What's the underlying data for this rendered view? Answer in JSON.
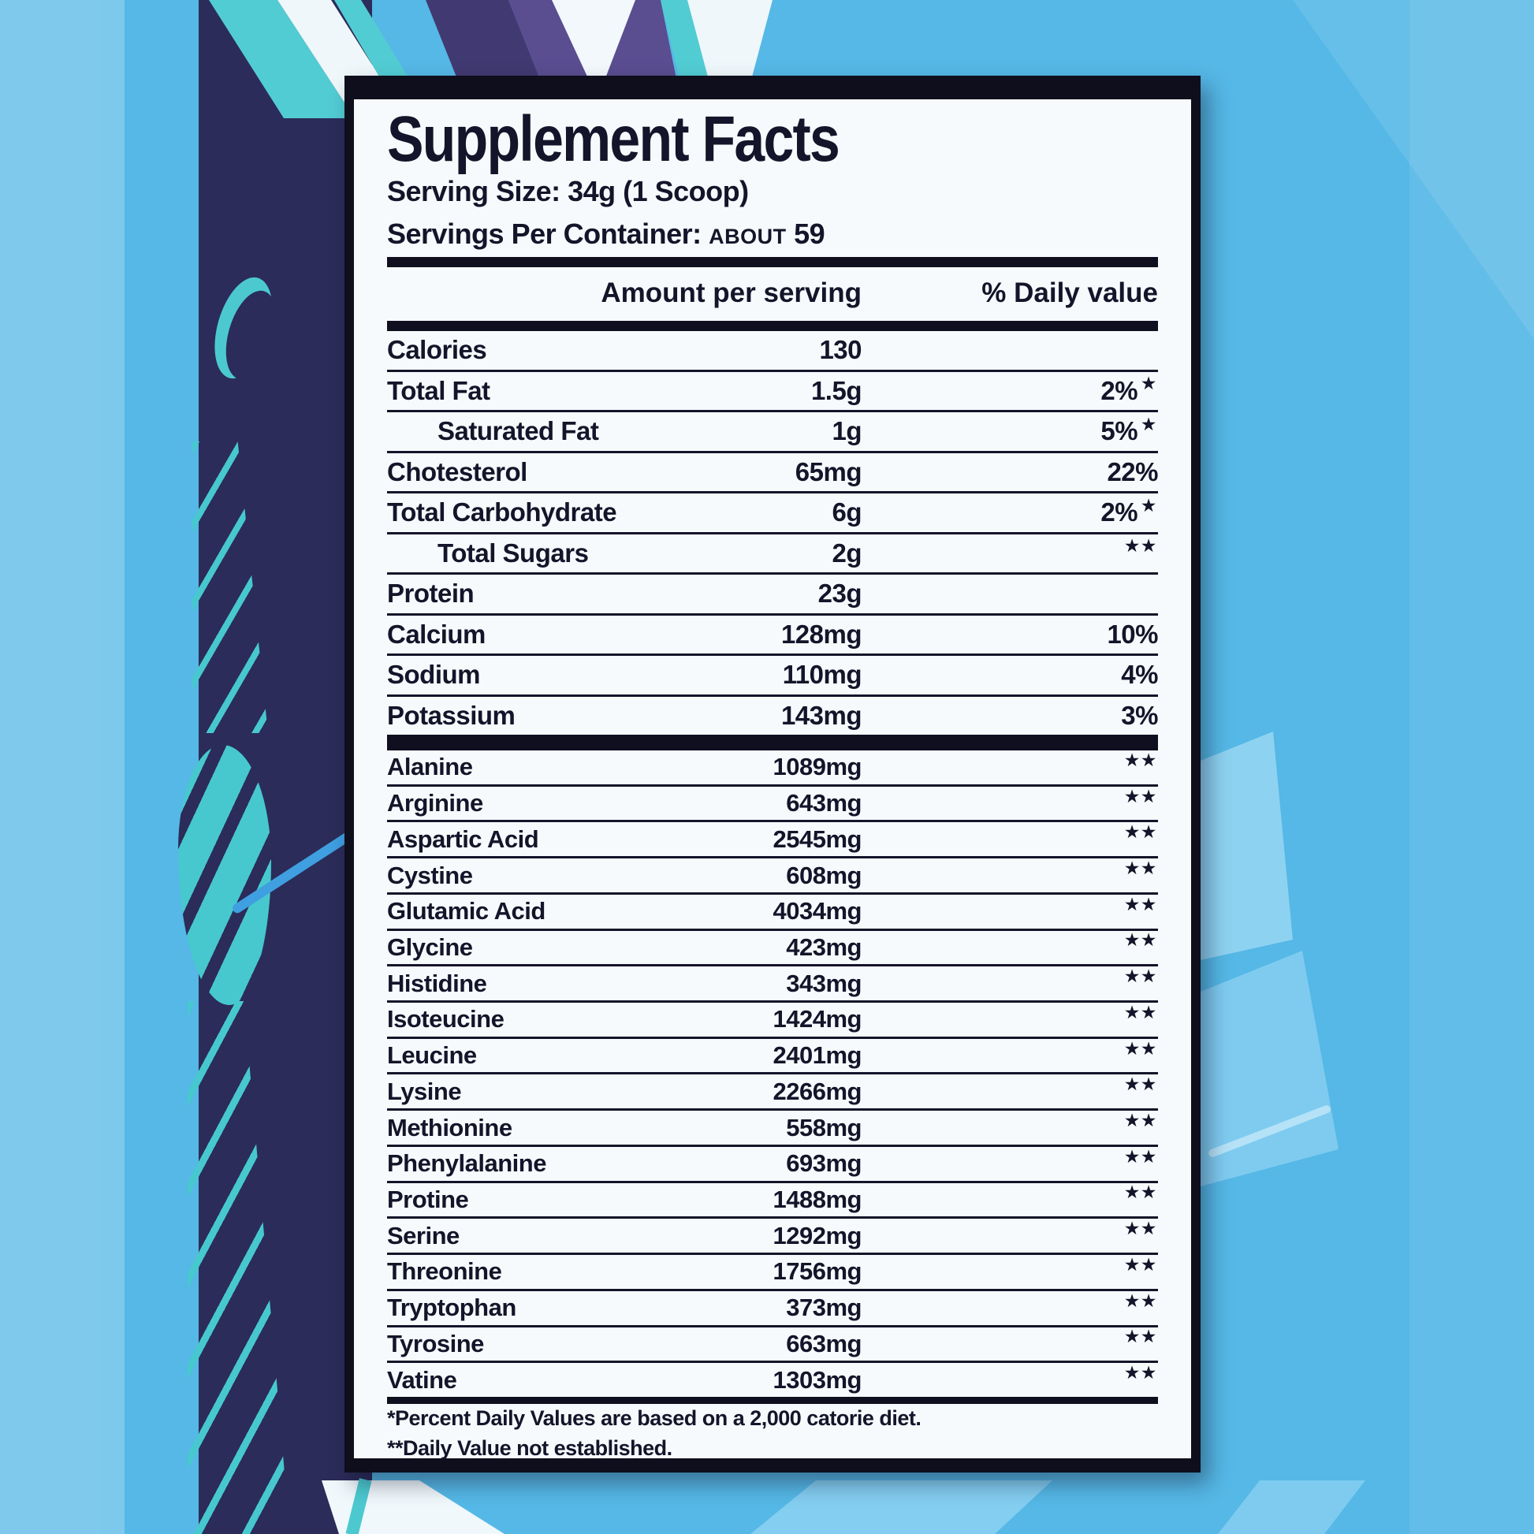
{
  "label": {
    "title": "Supplement Facts",
    "serving_size": "Serving Size: 34g (1 Scoop)",
    "servings_per_container_label": "Servings Per Container:",
    "servings_about": "About",
    "servings_count": "59",
    "columns": {
      "amount": "Amount per serving",
      "daily_value": "% Daily value"
    },
    "nutrients": [
      {
        "label": "Calories",
        "amount": "130",
        "dv": "",
        "stars": "",
        "indent": false
      },
      {
        "label": "Total Fat",
        "amount": "1.5g",
        "dv": "2%",
        "stars": "★",
        "indent": false
      },
      {
        "label": "Saturated Fat",
        "amount": "1g",
        "dv": "5%",
        "stars": "★",
        "indent": true
      },
      {
        "label": "Chotesterol",
        "amount": "65mg",
        "dv": "22%",
        "stars": "",
        "indent": false
      },
      {
        "label": "Total Carbohydrate",
        "amount": "6g",
        "dv": "2%",
        "stars": "★",
        "indent": false
      },
      {
        "label": "Total Sugars",
        "amount": "2g",
        "dv": "",
        "stars": "★★",
        "indent": true
      },
      {
        "label": "Protein",
        "amount": "23g",
        "dv": "",
        "stars": "",
        "indent": false
      },
      {
        "label": "Calcium",
        "amount": "128mg",
        "dv": "10%",
        "stars": "",
        "indent": false
      },
      {
        "label": "Sodium",
        "amount": "110mg",
        "dv": "4%",
        "stars": "",
        "indent": false
      },
      {
        "label": "Potassium",
        "amount": "143mg",
        "dv": "3%",
        "stars": "",
        "indent": false
      }
    ],
    "amino_acids": [
      {
        "label": "Alanine",
        "amount": "1089mg",
        "dv": "",
        "stars": "★★"
      },
      {
        "label": "Arginine",
        "amount": "643mg",
        "dv": "",
        "stars": "★★"
      },
      {
        "label": "Aspartic Acid",
        "amount": "2545mg",
        "dv": "",
        "stars": "★★"
      },
      {
        "label": "Cystine",
        "amount": "608mg",
        "dv": "",
        "stars": "★★"
      },
      {
        "label": "Glutamic Acid",
        "amount": "4034mg",
        "dv": "",
        "stars": "★★"
      },
      {
        "label": "Glycine",
        "amount": "423mg",
        "dv": "",
        "stars": "★★"
      },
      {
        "label": "Histidine",
        "amount": "343mg",
        "dv": "",
        "stars": "★★"
      },
      {
        "label": "Isoteucine",
        "amount": "1424mg",
        "dv": "",
        "stars": "★★"
      },
      {
        "label": "Leucine",
        "amount": "2401mg",
        "dv": "",
        "stars": "★★"
      },
      {
        "label": "Lysine",
        "amount": "2266mg",
        "dv": "",
        "stars": "★★"
      },
      {
        "label": "Methionine",
        "amount": "558mg",
        "dv": "",
        "stars": "★★"
      },
      {
        "label": "Phenylalanine",
        "amount": "693mg",
        "dv": "",
        "stars": "★★"
      },
      {
        "label": "Protine",
        "amount": "1488mg",
        "dv": "",
        "stars": "★★"
      },
      {
        "label": "Serine",
        "amount": "1292mg",
        "dv": "",
        "stars": "★★"
      },
      {
        "label": "Threonine",
        "amount": "1756mg",
        "dv": "",
        "stars": "★★"
      },
      {
        "label": "Tryptophan",
        "amount": "373mg",
        "dv": "",
        "stars": "★★"
      },
      {
        "label": "Tyrosine",
        "amount": "663mg",
        "dv": "",
        "stars": "★★"
      },
      {
        "label": "Vatine",
        "amount": "1303mg",
        "dv": "",
        "stars": "★★"
      }
    ],
    "footnotes": {
      "fn1": "*Percent Daily Values are based on a 2,000 catorie diet.",
      "fn2": "**Daily Value not established."
    }
  },
  "colors": {
    "background_blue": "#55b8e6",
    "accent_navy": "#2b2c59",
    "accent_teal": "#4cc9cf",
    "accent_purple": "#5a4d90",
    "panel_bg": "#f7fafc",
    "text": "#14142a"
  }
}
